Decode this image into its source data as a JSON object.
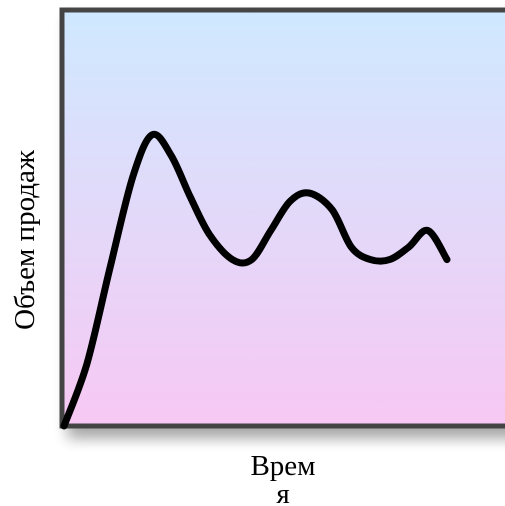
{
  "chart_data": {
    "type": "line",
    "title": "",
    "xlabel_lines": [
      "Врем",
      "я"
    ],
    "ylabel": "Объем продаж",
    "axis_labels_shown": false,
    "grid": false,
    "legend": "none",
    "xlim": [
      0,
      100
    ],
    "ylim": [
      0,
      100
    ],
    "series": [
      {
        "x": [
          0,
          6,
          12,
          18,
          23,
          28,
          33,
          38,
          44,
          49,
          54,
          59,
          64,
          70,
          75,
          80,
          85,
          90,
          95,
          100
        ],
        "y": [
          0,
          15,
          38,
          60,
          70,
          65,
          55,
          46,
          40,
          40,
          47,
          54,
          56,
          52,
          43,
          40,
          40,
          43,
          47,
          40
        ]
      }
    ],
    "colors": {
      "line": "#000000",
      "gradient_top": "#cfe9ff",
      "gradient_bottom": "#f7c8f3",
      "frame": "#444444"
    }
  }
}
